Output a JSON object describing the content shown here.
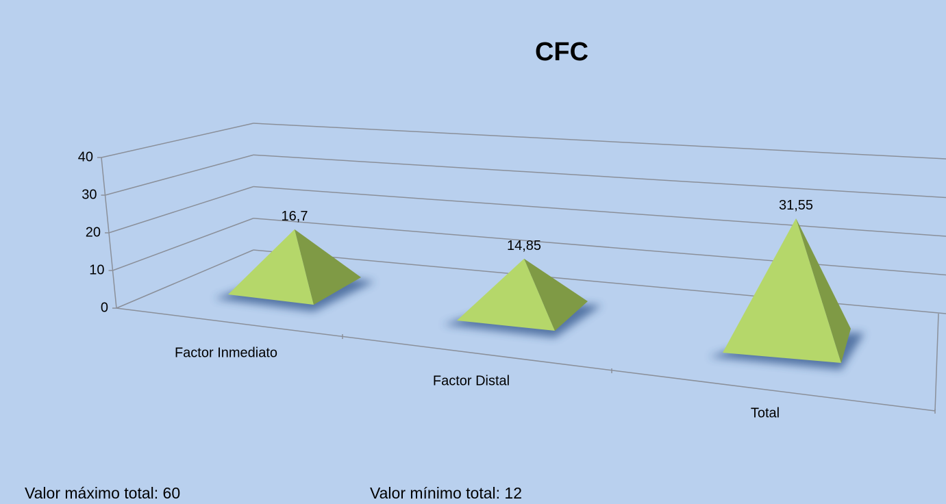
{
  "chart_data": {
    "type": "pyramid",
    "title": "CFC",
    "categories": [
      "Factor Inmediato",
      "Factor Distal",
      "Total"
    ],
    "values": [
      16.7,
      14.85,
      31.55
    ],
    "value_labels": [
      "16,7",
      "14,85",
      "31,55"
    ],
    "color": "#b5d76a",
    "ylim": [
      0,
      40
    ],
    "yticks": [
      0,
      10,
      20,
      30,
      40
    ],
    "grid": true
  },
  "notes": [
    "Valor máximo total: 60",
    "Valor mínimo  total: 12"
  ]
}
